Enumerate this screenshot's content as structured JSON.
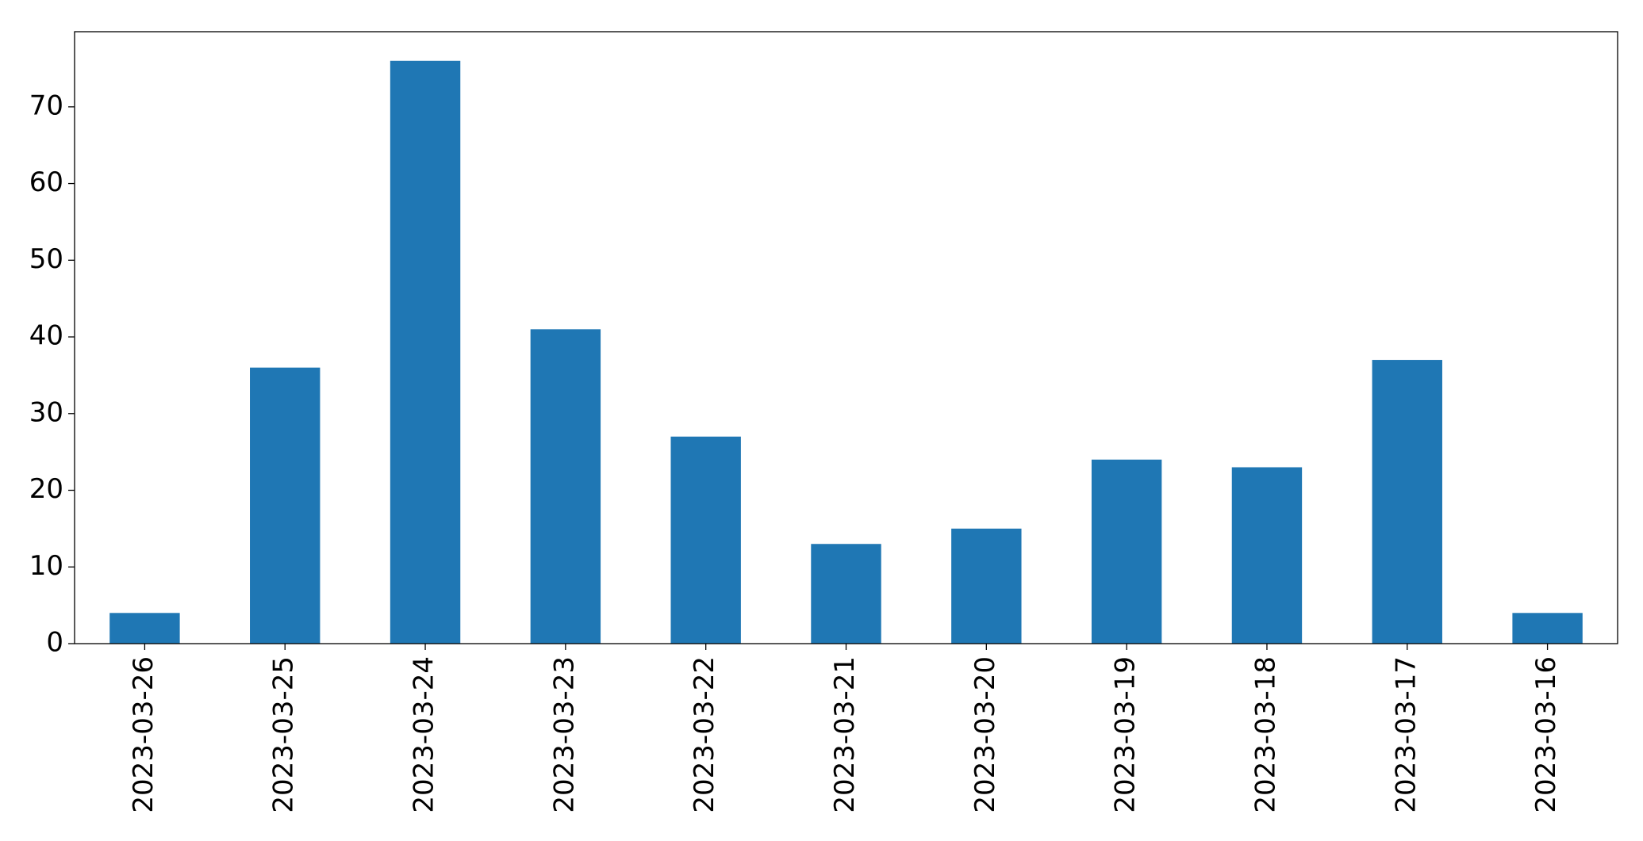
{
  "chart_data": {
    "type": "bar",
    "categories": [
      "2023-03-26",
      "2023-03-25",
      "2023-03-24",
      "2023-03-23",
      "2023-03-22",
      "2023-03-21",
      "2023-03-20",
      "2023-03-19",
      "2023-03-18",
      "2023-03-17",
      "2023-03-16"
    ],
    "values": [
      4,
      36,
      76,
      41,
      27,
      13,
      15,
      24,
      23,
      37,
      4
    ],
    "color": "#1f77b4",
    "ylim": [
      0,
      79.8
    ],
    "yticks": [
      0,
      10,
      20,
      30,
      40,
      50,
      60,
      70
    ],
    "grid": false
  }
}
